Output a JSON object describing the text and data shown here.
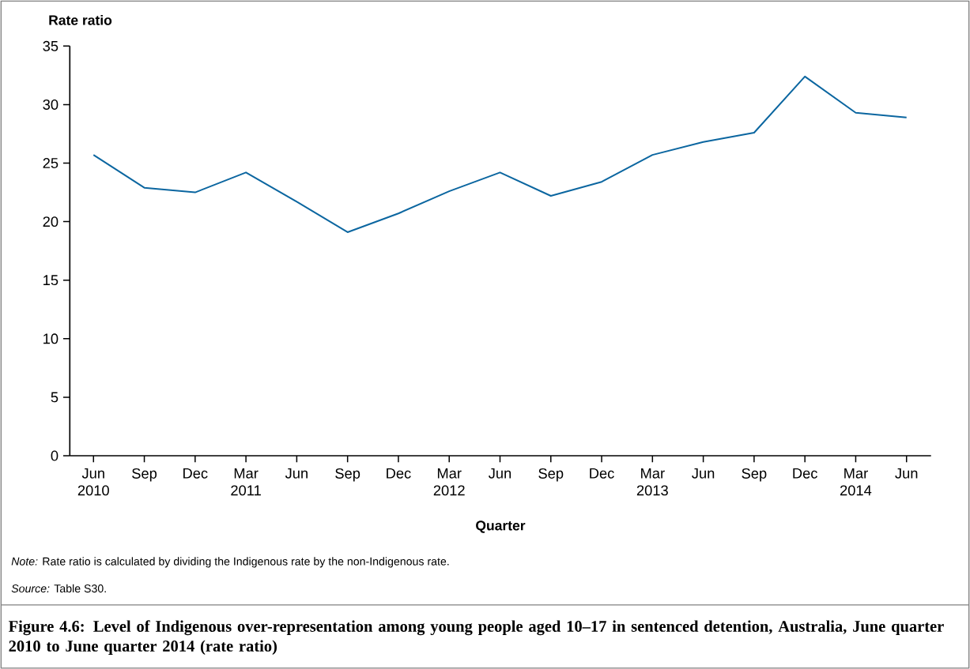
{
  "chart_data": {
    "type": "line",
    "title": "Figure 4.6: Level of Indigenous over-representation among young people aged 10–17 in sentenced detention, Australia, June quarter 2010 to June quarter 2014 (rate ratio)",
    "xlabel": "Quarter",
    "ylabel": "Rate ratio",
    "annotations": [
      "*Note:* Rate ratio is calculated by dividing the Indigenous rate by the non-Indigenous rate.",
      "*Source:* Table S30."
    ],
    "categories": [
      "Jun 2010",
      "Sep",
      "Dec",
      "Mar 2011",
      "Jun",
      "Sep",
      "Dec",
      "Mar 2012",
      "Jun",
      "Sep",
      "Dec",
      "Mar 2013",
      "Jun",
      "Sep",
      "Dec",
      "Mar 2014",
      "Jun"
    ],
    "series": [
      {
        "color": "#0b66a0",
        "values": [
          25.7,
          22.9,
          22.5,
          24.2,
          21.7,
          19.1,
          20.7,
          22.6,
          24.2,
          22.2,
          23.4,
          25.7,
          26.8,
          27.6,
          32.4,
          29.3,
          28.9
        ]
      }
    ],
    "ylim": [
      0,
      35
    ],
    "yticks": [
      0,
      5,
      10,
      15,
      20,
      25,
      30,
      35
    ]
  }
}
